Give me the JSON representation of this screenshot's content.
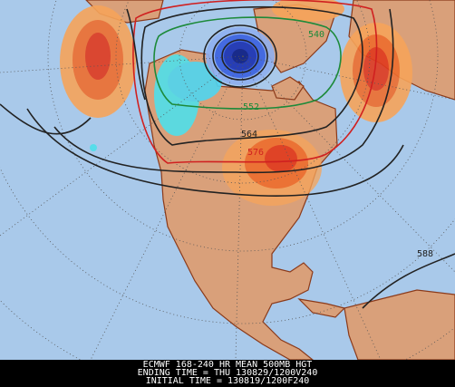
{
  "map": {
    "contour_labels": [
      "540",
      "552",
      "564",
      "576",
      "588"
    ],
    "footer": {
      "line1": "ECMWF 168-240 HR MEAN 500MB HGT",
      "line2": "ENDING TIME = THU 130829/1200V240",
      "line3": "INITIAL TIME = 130819/1200F240"
    }
  }
}
